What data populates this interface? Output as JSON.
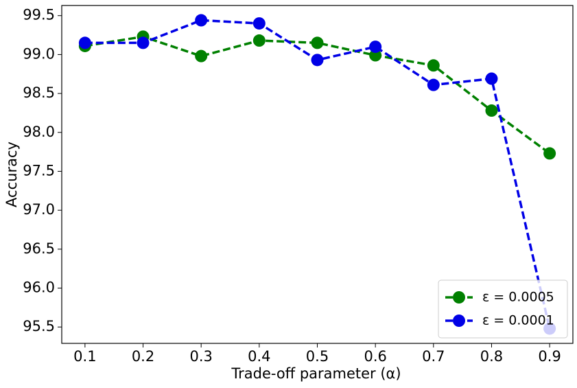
{
  "chart_data": {
    "type": "line",
    "x_label": "Trade-off parameter (α)",
    "y_label": "Accuracy",
    "x": [
      0.1,
      0.2,
      0.3,
      0.4,
      0.5,
      0.6,
      0.7,
      0.8,
      0.9
    ],
    "series": [
      {
        "name": "ε = 0.0005",
        "color": "#008000",
        "values": [
          99.11,
          99.23,
          98.98,
          99.18,
          99.15,
          98.99,
          98.86,
          98.28,
          97.73
        ]
      },
      {
        "name": "ε = 0.0001",
        "color": "#0000e6",
        "values": [
          99.15,
          99.15,
          99.44,
          99.4,
          98.93,
          99.1,
          98.61,
          98.69,
          95.48
        ]
      }
    ],
    "xlim": [
      0.06,
      0.94
    ],
    "ylim": [
      95.29,
      99.63
    ],
    "xticks": [
      0.1,
      0.2,
      0.3,
      0.4,
      0.5,
      0.6,
      0.7,
      0.8,
      0.9
    ],
    "yticks": [
      95.5,
      {
        "value": 96,
        "label": "96.0"
      },
      96.5,
      {
        "value": 97,
        "label": "97.0"
      },
      97.5,
      {
        "value": 98,
        "label": "98.0"
      },
      98.5,
      {
        "value": 99,
        "label": "99.0"
      },
      99.5
    ],
    "legend": "lower right",
    "line_style": "dashed"
  }
}
